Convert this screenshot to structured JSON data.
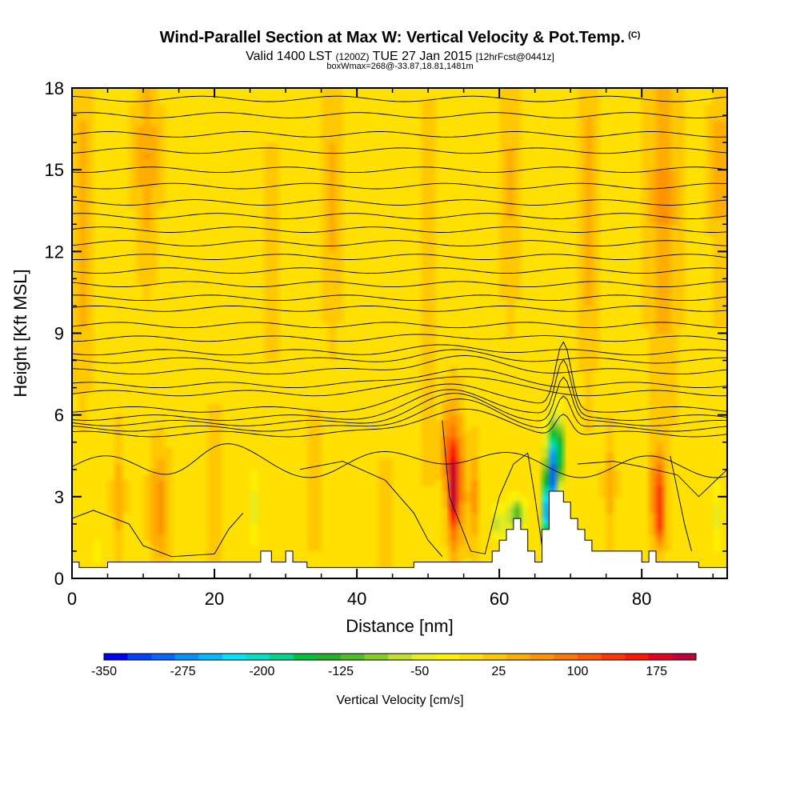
{
  "header": {
    "title": "Wind-Parallel Section at Max W: Vertical Velocity & Pot.Temp.",
    "copyright": "(C)",
    "valid_prefix": "Valid 1400 LST",
    "valid_utc": "(1200Z)",
    "valid_date": "TUE 27 Jan 2015",
    "forecast": "[12hrFcst@0441z]",
    "box_info": "boxWmax=268@-33.87,18.81,1481m"
  },
  "chart_data": {
    "type": "heatmap",
    "xlabel": "Distance [nm]",
    "ylabel": "Height [Kft MSL]",
    "xlim": [
      0,
      92
    ],
    "ylim": [
      0,
      18
    ],
    "xticks": [
      "0",
      "20",
      "40",
      "60",
      "80"
    ],
    "yticks": [
      "0",
      "3",
      "6",
      "9",
      "12",
      "15",
      "18"
    ],
    "xtick_values": [
      0,
      20,
      40,
      60,
      80
    ],
    "ytick_values": [
      0,
      3,
      6,
      9,
      12,
      15,
      18
    ],
    "background_color": "#ffef00",
    "colorbar": {
      "title": "Vertical Velocity [cm/s]",
      "labels": [
        "-350",
        "-275",
        "-200",
        "-125",
        "-50",
        "25",
        "100",
        "175"
      ],
      "label_values": [
        -350,
        -275,
        -200,
        -125,
        -50,
        25,
        100,
        175
      ],
      "min": -350,
      "max": 212.5,
      "colors": [
        "#0000ff",
        "#0040ff",
        "#0068ff",
        "#0094ff",
        "#00bcff",
        "#00e4ff",
        "#00e0c8",
        "#00d490",
        "#00c040",
        "#28b028",
        "#50bc28",
        "#86cc28",
        "#c0e030",
        "#e8ec20",
        "#fff200",
        "#ffe000",
        "#ffc800",
        "#ffae00",
        "#ff9400",
        "#ff7800",
        "#ff5a00",
        "#ff3800",
        "#ff1800",
        "#e40024",
        "#c40038"
      ]
    },
    "terrain_profile": [
      [
        0,
        0
      ],
      [
        0,
        0.6
      ],
      [
        1,
        0.6
      ],
      [
        1,
        0.4
      ],
      [
        5,
        0.4
      ],
      [
        5,
        0.6
      ],
      [
        26.5,
        0.6
      ],
      [
        26.5,
        1.0
      ],
      [
        28,
        1.0
      ],
      [
        28,
        0.6
      ],
      [
        30,
        0.6
      ],
      [
        30,
        1.0
      ],
      [
        31,
        1.0
      ],
      [
        31,
        0.6
      ],
      [
        33,
        0.6
      ],
      [
        33,
        0.4
      ],
      [
        48,
        0.4
      ],
      [
        48,
        0.6
      ],
      [
        59,
        0.6
      ],
      [
        59,
        1.0
      ],
      [
        60,
        1.0
      ],
      [
        60,
        1.4
      ],
      [
        61,
        1.4
      ],
      [
        61,
        1.8
      ],
      [
        62,
        1.8
      ],
      [
        62,
        2.2
      ],
      [
        63,
        2.2
      ],
      [
        63,
        1.8
      ],
      [
        64,
        1.8
      ],
      [
        64,
        1.0
      ],
      [
        65,
        1.0
      ],
      [
        65,
        0.6
      ],
      [
        66,
        0.6
      ],
      [
        66,
        1.8
      ],
      [
        67,
        1.8
      ],
      [
        67,
        3.2
      ],
      [
        69,
        3.2
      ],
      [
        69,
        2.8
      ],
      [
        70,
        2.8
      ],
      [
        70,
        2.2
      ],
      [
        71,
        2.2
      ],
      [
        71,
        1.8
      ],
      [
        72,
        1.8
      ],
      [
        72,
        1.4
      ],
      [
        73,
        1.4
      ],
      [
        73,
        1.0
      ],
      [
        80,
        1.0
      ],
      [
        80,
        0.6
      ],
      [
        81,
        0.6
      ],
      [
        81,
        1.0
      ],
      [
        82,
        1.0
      ],
      [
        82,
        0.6
      ],
      [
        88,
        0.6
      ],
      [
        88,
        0.4
      ],
      [
        92,
        0.4
      ],
      [
        92,
        0
      ]
    ],
    "vertical_velocity_features": [
      {
        "name": "updraft-main",
        "x": 53.8,
        "y": 3.6,
        "sx": 0.55,
        "sy": 1.6,
        "value": 185
      },
      {
        "name": "updraft-main-core",
        "x": 53.5,
        "y": 3.2,
        "sx": 0.3,
        "sy": 0.9,
        "value": 60
      },
      {
        "name": "updraft-main-left",
        "x": 52.3,
        "y": 4.6,
        "sx": 0.35,
        "sy": 1.2,
        "value": 90
      },
      {
        "name": "downdraft-slope",
        "x": 67.2,
        "y": 3.6,
        "sx": 0.45,
        "sy": 1.3,
        "value": -330
      },
      {
        "name": "downdraft-slope-upper",
        "x": 68.2,
        "y": 4.6,
        "sx": 0.45,
        "sy": 0.9,
        "value": -200
      },
      {
        "name": "downdraft-slope-lower",
        "x": 66.3,
        "y": 2.4,
        "sx": 0.35,
        "sy": 0.7,
        "value": -220
      },
      {
        "name": "sink-left-of-slope",
        "x": 62.3,
        "y": 2.3,
        "sx": 0.9,
        "sy": 0.5,
        "value": -120
      },
      {
        "name": "sink-near-60",
        "x": 59.8,
        "y": 2.0,
        "sx": 0.6,
        "sy": 0.4,
        "value": -90
      },
      {
        "name": "updraft-right",
        "x": 82.2,
        "y": 3.2,
        "sx": 0.6,
        "sy": 1.0,
        "value": 130
      },
      {
        "name": "updraft-right-base",
        "x": 82.6,
        "y": 1.8,
        "sx": 0.5,
        "sy": 0.5,
        "value": 80
      },
      {
        "name": "updraft-mid",
        "x": 56.2,
        "y": 3.0,
        "sx": 0.5,
        "sy": 1.2,
        "value": 70
      },
      {
        "name": "updraft-low-left",
        "x": 12.2,
        "y": 2.6,
        "sx": 0.8,
        "sy": 1.3,
        "value": 70
      },
      {
        "name": "sink-x25",
        "x": 25.6,
        "y": 2.6,
        "sx": 0.3,
        "sy": 0.9,
        "value": -55
      },
      {
        "name": "sink-x91",
        "x": 90.5,
        "y": 2.3,
        "sx": 0.4,
        "sy": 0.9,
        "value": -45
      },
      {
        "name": "sink-x3",
        "x": 3.3,
        "y": 1.0,
        "sx": 0.4,
        "sy": 0.4,
        "value": -30
      },
      {
        "name": "up-x1-mid",
        "x": 1.5,
        "y": 13.0,
        "sx": 0.8,
        "sy": 3.5,
        "value": 50
      },
      {
        "name": "up-x10-upper",
        "x": 10.5,
        "y": 15.5,
        "sx": 1.0,
        "sy": 2.5,
        "value": 50
      },
      {
        "name": "up-x28-upper",
        "x": 28.0,
        "y": 12.0,
        "sx": 0.7,
        "sy": 2.2,
        "value": 35
      },
      {
        "name": "up-x37-upper",
        "x": 36.5,
        "y": 14.0,
        "sx": 0.8,
        "sy": 3.0,
        "value": 35
      },
      {
        "name": "up-x50-upper",
        "x": 50.0,
        "y": 10.5,
        "sx": 0.6,
        "sy": 4.0,
        "value": 35
      },
      {
        "name": "up-x61-upper",
        "x": 61.5,
        "y": 14.5,
        "sx": 0.8,
        "sy": 3.0,
        "value": 30
      },
      {
        "name": "up-x72-upper",
        "x": 72.5,
        "y": 13.5,
        "sx": 0.7,
        "sy": 4.0,
        "value": 40
      },
      {
        "name": "up-x83-upper",
        "x": 83.0,
        "y": 14.0,
        "sx": 1.3,
        "sy": 4.5,
        "value": 55
      },
      {
        "name": "up-x91-upper",
        "x": 91.0,
        "y": 15.0,
        "sx": 0.8,
        "sy": 3.0,
        "value": 40
      },
      {
        "name": "up-x6-low",
        "x": 6.5,
        "y": 3.0,
        "sx": 0.5,
        "sy": 1.5,
        "value": 40
      },
      {
        "name": "up-x20-low",
        "x": 20.0,
        "y": 3.5,
        "sx": 0.6,
        "sy": 1.6,
        "value": 35
      },
      {
        "name": "up-x34-low",
        "x": 34.0,
        "y": 3.6,
        "sx": 0.5,
        "sy": 1.5,
        "value": 40
      },
      {
        "name": "up-x44-low",
        "x": 44.0,
        "y": 2.4,
        "sx": 0.5,
        "sy": 1.2,
        "value": 30
      },
      {
        "name": "up-x75-low",
        "x": 75.5,
        "y": 3.5,
        "sx": 0.5,
        "sy": 1.2,
        "value": 40
      }
    ],
    "potential_temperature_contours": [
      {
        "level": 1,
        "base": 4.4,
        "amp": 0.4,
        "bump": 0.5,
        "xb": 52
      },
      {
        "level": 2,
        "base": 5.3,
        "amp": 0.1,
        "bump": 0.9,
        "xb": 54
      },
      {
        "level": 3,
        "base": 5.5,
        "amp": 0.1,
        "bump": 1.0,
        "xb": 54
      },
      {
        "level": 4,
        "base": 5.7,
        "amp": 0.1,
        "bump": 1.0,
        "xb": 54
      },
      {
        "level": 5,
        "base": 5.9,
        "amp": 0.1,
        "bump": 1.0,
        "xb": 54
      },
      {
        "level": 6,
        "base": 6.2,
        "amp": 0.1,
        "bump": 1.0,
        "xb": 54
      },
      {
        "level": 7,
        "base": 6.8,
        "amp": 0.1,
        "bump": 0.7,
        "xb": 54
      },
      {
        "level": 8,
        "base": 7.1,
        "amp": 0.1,
        "bump": 0.6,
        "xb": 54
      },
      {
        "level": 9,
        "base": 7.6,
        "amp": 0.1,
        "bump": 0.5,
        "xb": 54
      },
      {
        "level": 10,
        "base": 8.0,
        "amp": 0.1,
        "bump": 0.3,
        "xb": 54
      },
      {
        "level": 11,
        "base": 8.3,
        "amp": 0.1,
        "bump": 0.2,
        "xb": 54
      },
      {
        "level": 12,
        "base": 8.8,
        "amp": 0.1,
        "bump": 0.1,
        "xb": 54
      },
      {
        "level": 13,
        "base": 9.3,
        "amp": 0.1,
        "bump": 0.0,
        "xb": 54
      },
      {
        "level": 14,
        "base": 9.9,
        "amp": 0.1,
        "bump": 0.0,
        "xb": 54
      },
      {
        "level": 15,
        "base": 10.3,
        "amp": 0.1,
        "bump": 0.0,
        "xb": 54
      },
      {
        "level": 16,
        "base": 10.8,
        "amp": 0.1,
        "bump": 0.0,
        "xb": 54
      },
      {
        "level": 17,
        "base": 11.3,
        "amp": 0.1,
        "bump": 0.0,
        "xb": 54
      },
      {
        "level": 18,
        "base": 11.8,
        "amp": 0.1,
        "bump": 0.0,
        "xb": 54
      },
      {
        "level": 19,
        "base": 12.3,
        "amp": 0.1,
        "bump": 0.0,
        "xb": 54
      },
      {
        "level": 20,
        "base": 12.8,
        "amp": 0.1,
        "bump": 0.0,
        "xb": 54
      },
      {
        "level": 21,
        "base": 13.3,
        "amp": 0.1,
        "bump": 0.0,
        "xb": 54
      },
      {
        "level": 22,
        "base": 13.8,
        "amp": 0.1,
        "bump": 0.0,
        "xb": 54
      },
      {
        "level": 23,
        "base": 14.4,
        "amp": 0.1,
        "bump": 0.0,
        "xb": 54
      },
      {
        "level": 24,
        "base": 15.0,
        "amp": 0.1,
        "bump": 0.0,
        "xb": 54
      },
      {
        "level": 25,
        "base": 15.7,
        "amp": 0.1,
        "bump": 0.0,
        "xb": 54
      },
      {
        "level": 26,
        "base": 16.3,
        "amp": 0.1,
        "bump": 0.0,
        "xb": 54
      },
      {
        "level": 27,
        "base": 17.0,
        "amp": 0.1,
        "bump": 0.0,
        "xb": 54
      },
      {
        "level": 28,
        "base": 17.6,
        "amp": 0.1,
        "bump": 0.0,
        "xb": 54
      }
    ]
  }
}
